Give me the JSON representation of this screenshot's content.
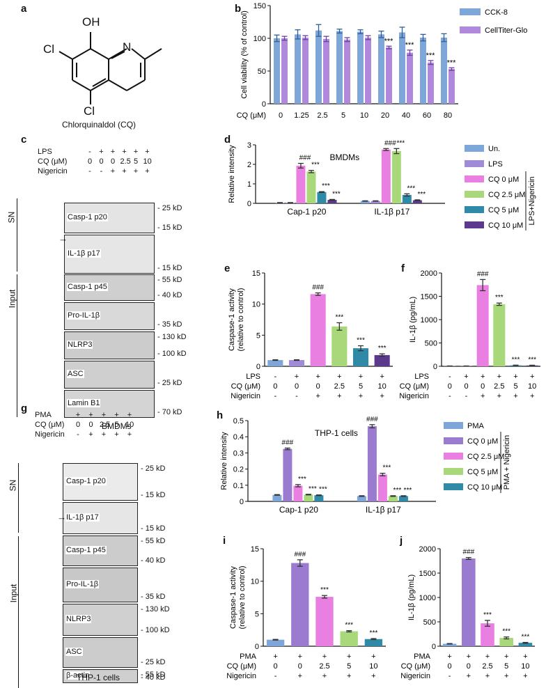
{
  "panels": {
    "a": "a",
    "b": "b",
    "c": "c",
    "d": "d",
    "e": "e",
    "f": "f",
    "g": "g",
    "h": "h",
    "i": "i",
    "j": "j"
  },
  "colors": {
    "un": "#7ea6d8",
    "lps": "#a08bd6",
    "cq0": "#e97fe0",
    "cq25": "#a8d87a",
    "cq5": "#2e8aa6",
    "cq10": "#5b3a8e",
    "pma": "#7ea6d8",
    "cq0_thp": "#9b7bd0",
    "cck8": "#7ea6d8",
    "ctg": "#b089dc"
  },
  "molecule": {
    "oh": "OH",
    "n": "N",
    "cl1": "Cl",
    "cl2": "Cl",
    "name": "Chlorquinaldol (CQ)"
  },
  "panel_c": {
    "row_labels": [
      "LPS",
      "CQ (μM)",
      "Nigericin"
    ],
    "rows": [
      [
        "-",
        "+",
        "+",
        "+",
        "+",
        "+"
      ],
      [
        "0",
        "0",
        "0",
        "2.5",
        "5",
        "10"
      ],
      [
        "-",
        "-",
        "+",
        "+",
        "+",
        "+"
      ]
    ],
    "blots": [
      {
        "name": "Casp-1 p20",
        "marks": [
          "25 kD",
          "15 kD"
        ]
      },
      {
        "name": "IL-1β p17",
        "marks": [
          "15 kD"
        ]
      },
      {
        "name": "Casp-1 p45",
        "marks": [
          "55 kD",
          "40 kD"
        ]
      },
      {
        "name": "Pro-IL-1β",
        "marks": [
          "35 kD"
        ]
      },
      {
        "name": "NLRP3",
        "marks": [
          "130 kD",
          "100 kD"
        ]
      },
      {
        "name": "ASC",
        "marks": [
          "25 kD"
        ]
      },
      {
        "name": "Lamin B1",
        "marks": [
          "70 kD"
        ]
      }
    ],
    "sn": "SN",
    "input": "Input",
    "caption": "BMDMs"
  },
  "panel_g": {
    "row_labels": [
      "PMA",
      "CQ (μM)",
      "Nigericin"
    ],
    "rows": [
      [
        "+",
        "+",
        "+",
        "+",
        "+"
      ],
      [
        "0",
        "0",
        "2.5",
        "5",
        "10"
      ],
      [
        "-",
        "+",
        "+",
        "+",
        "+"
      ]
    ],
    "blots": [
      {
        "name": "Casp-1 p20",
        "marks": [
          "25 kD",
          "15 kD"
        ]
      },
      {
        "name": "IL-1β p17",
        "marks": [
          "15 kD"
        ]
      },
      {
        "name": "Casp-1 p45",
        "marks": [
          "55 kD",
          "40 kD"
        ]
      },
      {
        "name": "Pro-IL-1β",
        "marks": [
          "35 kD"
        ]
      },
      {
        "name": "NLRP3",
        "marks": [
          "130 kD",
          "100 kD"
        ]
      },
      {
        "name": "ASC",
        "marks": [
          "25 kD"
        ]
      },
      {
        "name": "β-actin",
        "marks": [
          "55 kD",
          "40 kD"
        ]
      }
    ],
    "sn": "SN",
    "input": "Input",
    "caption": "THP-1 cells"
  },
  "chart_data": [
    {
      "id": "b",
      "type": "bar",
      "ylabel": "Cell viability (% of control)",
      "xlabel": "CQ (μM)",
      "categories": [
        "0",
        "1.25",
        "2.5",
        "5",
        "10",
        "20",
        "40",
        "60",
        "80"
      ],
      "ylim": [
        0,
        150
      ],
      "yticks": [
        0,
        50,
        100,
        150
      ],
      "series": [
        {
          "name": "CCK-8",
          "values": [
            100,
            106,
            112,
            111,
            110,
            106,
            109,
            101,
            101
          ],
          "err": [
            5,
            7,
            9,
            3,
            3,
            5,
            8,
            5,
            6
          ]
        },
        {
          "name": "CellTiter-Glo",
          "values": [
            100,
            101,
            99,
            98,
            101,
            86,
            78,
            63,
            53
          ],
          "err": [
            3,
            3,
            4,
            3,
            3,
            2,
            4,
            3,
            2
          ]
        }
      ],
      "annotations": [
        {
          "i": 5,
          "text": "***"
        },
        {
          "i": 6,
          "text": "***"
        },
        {
          "i": 7,
          "text": "***"
        },
        {
          "i": 8,
          "text": "***"
        }
      ]
    },
    {
      "id": "d",
      "type": "bar",
      "title": "BMDMs",
      "ylabel": "Relative intensity",
      "groups": [
        "Cap-1 p20",
        "IL-1β p17"
      ],
      "ylim": [
        0,
        3
      ],
      "yticks": [
        0,
        1,
        2,
        3
      ],
      "series": [
        {
          "name": "Un.",
          "values": [
            0.03,
            0.12
          ],
          "err": [
            0.01,
            0.01
          ]
        },
        {
          "name": "LPS",
          "values": [
            0.03,
            0.12
          ],
          "err": [
            0.01,
            0.01
          ]
        },
        {
          "name": "CQ 0 μM",
          "values": [
            1.93,
            2.76
          ],
          "err": [
            0.12,
            0.05
          ]
        },
        {
          "name": "CQ 2.5 μM",
          "values": [
            1.63,
            2.68
          ],
          "err": [
            0.06,
            0.13
          ]
        },
        {
          "name": "CQ 5 μM",
          "values": [
            0.58,
            0.43
          ],
          "err": [
            0.02,
            0.06
          ]
        },
        {
          "name": "CQ 10 μM",
          "values": [
            0.18,
            0.16
          ],
          "err": [
            0.02,
            0.02
          ]
        }
      ],
      "marks": [
        "",
        "",
        "###",
        "***",
        "***",
        "***"
      ],
      "legend_group": "LPS+Nigericin"
    },
    {
      "id": "e",
      "type": "bar",
      "ylabel": "Caspase-1 activity (relative to control)",
      "ylim": [
        0,
        15
      ],
      "yticks": [
        0,
        5,
        10,
        15
      ],
      "values": [
        1.0,
        1.0,
        11.6,
        6.4,
        2.9,
        1.8
      ],
      "err": [
        0.05,
        0.05,
        0.2,
        0.6,
        0.4,
        0.2
      ],
      "marks": [
        "",
        "",
        "###",
        "***",
        "***",
        "***"
      ],
      "rows": [
        [
          "LPS",
          [
            "-",
            "+",
            "+",
            "+",
            "+",
            "+"
          ]
        ],
        [
          "CQ (μM)",
          [
            "0",
            "0",
            "0",
            "2.5",
            "5",
            "10"
          ]
        ],
        [
          "Nigericin",
          [
            "-",
            "-",
            "+",
            "+",
            "+",
            "+"
          ]
        ]
      ]
    },
    {
      "id": "f",
      "type": "bar",
      "ylabel": "IL-1β (pg/mL)",
      "ylim": [
        0,
        2000
      ],
      "yticks": [
        0,
        500,
        1000,
        1500,
        2000
      ],
      "values": [
        5,
        5,
        1740,
        1330,
        20,
        18
      ],
      "err": [
        2,
        2,
        120,
        25,
        5,
        5
      ],
      "marks": [
        "",
        "",
        "###",
        "***",
        "***",
        "***"
      ],
      "rows": [
        [
          "LPS",
          [
            "-",
            "+",
            "+",
            "+",
            "+",
            "+"
          ]
        ],
        [
          "CQ (μM)",
          [
            "0",
            "0",
            "0",
            "2.5",
            "5",
            "10"
          ]
        ],
        [
          "Nigericin",
          [
            "-",
            "-",
            "+",
            "+",
            "+",
            "+"
          ]
        ]
      ]
    },
    {
      "id": "h",
      "type": "bar",
      "title": "THP-1 cells",
      "ylabel": "Relative intensity",
      "groups": [
        "Cap-1 p20",
        "IL-1β p17"
      ],
      "ylim": [
        0,
        0.5
      ],
      "yticks": [
        0,
        0.1,
        0.2,
        0.3,
        0.4,
        0.5
      ],
      "series": [
        {
          "name": "PMA",
          "values": [
            0.04,
            0.033
          ],
          "err": [
            0.002,
            0.002
          ]
        },
        {
          "name": "CQ 0 μM",
          "values": [
            0.325,
            0.465
          ],
          "err": [
            0.005,
            0.01
          ]
        },
        {
          "name": "CQ 2.5 μM",
          "values": [
            0.097,
            0.166
          ],
          "err": [
            0.007,
            0.008
          ]
        },
        {
          "name": "CQ 5 μM",
          "values": [
            0.042,
            0.033
          ],
          "err": [
            0.002,
            0.002
          ]
        },
        {
          "name": "CQ 10 μM",
          "values": [
            0.038,
            0.033
          ],
          "err": [
            0.002,
            0.002
          ]
        }
      ],
      "marks": [
        "",
        "###",
        "***",
        "***",
        "***"
      ],
      "legend_group": "PMA + Nigericin"
    },
    {
      "id": "i",
      "type": "bar",
      "ylabel": "Caspase-1 activity (relative to control)",
      "ylim": [
        0,
        15
      ],
      "yticks": [
        0,
        5,
        10,
        15
      ],
      "values": [
        1.0,
        12.8,
        7.6,
        2.3,
        1.1
      ],
      "err": [
        0.05,
        0.5,
        0.2,
        0.1,
        0.08
      ],
      "marks": [
        "",
        "###",
        "***",
        "***",
        "***"
      ],
      "rows": [
        [
          "PMA",
          [
            "+",
            "+",
            "+",
            "+",
            "+"
          ]
        ],
        [
          "CQ (μM)",
          [
            "0",
            "0",
            "2.5",
            "5",
            "10"
          ]
        ],
        [
          "Nigericin",
          [
            "-",
            "+",
            "+",
            "+",
            "+"
          ]
        ]
      ]
    },
    {
      "id": "j",
      "type": "bar",
      "ylabel": "IL-1β (pg/mL)",
      "ylim": [
        0,
        2000
      ],
      "yticks": [
        0,
        500,
        1000,
        1500,
        2000
      ],
      "values": [
        50,
        1800,
        470,
        170,
        70
      ],
      "err": [
        5,
        20,
        60,
        20,
        8
      ],
      "marks": [
        "",
        "###",
        "***",
        "***",
        "***"
      ],
      "rows": [
        [
          "PMA",
          [
            "+",
            "+",
            "+",
            "+",
            "+"
          ]
        ],
        [
          "CQ (μM)",
          [
            "0",
            "0",
            "2.5",
            "5",
            "10"
          ]
        ],
        [
          "Nigericin",
          [
            "-",
            "+",
            "+",
            "+",
            "+"
          ]
        ]
      ]
    }
  ]
}
